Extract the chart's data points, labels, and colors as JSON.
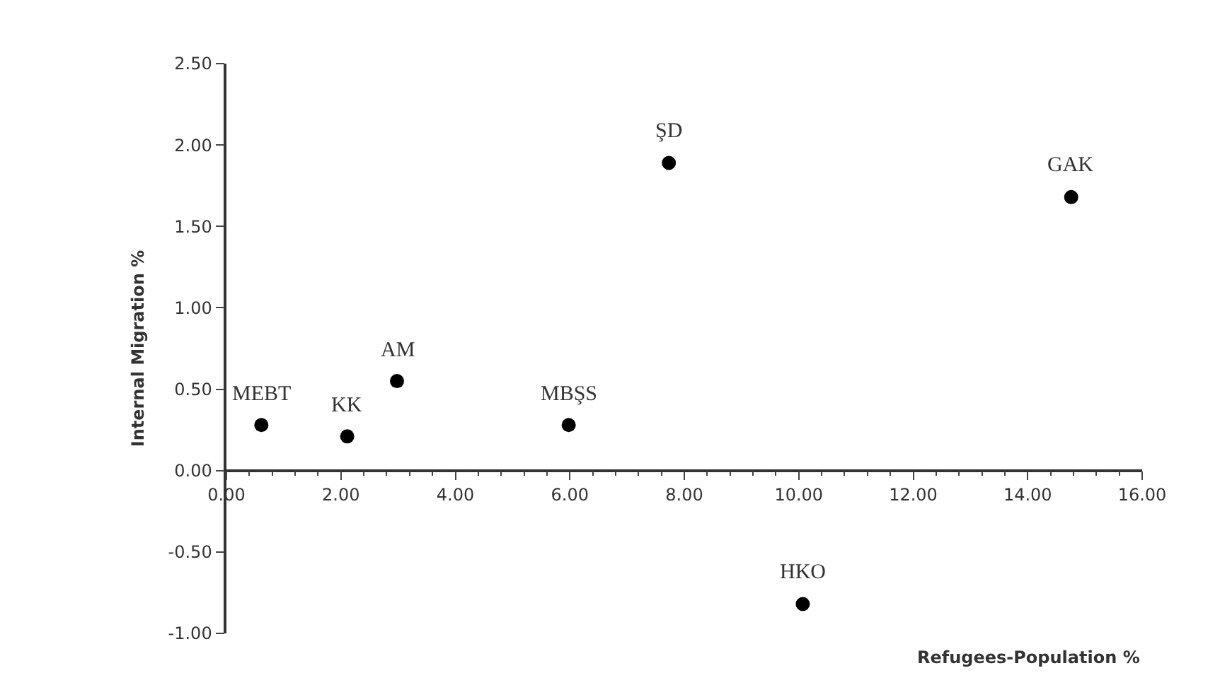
{
  "chart_data": {
    "type": "scatter",
    "xlabel": "Refugees-Population %",
    "ylabel": "Internal Migration %",
    "x": [
      0.61,
      2.11,
      2.98,
      5.98,
      7.73,
      14.76,
      10.07
    ],
    "series": [
      {
        "color": "#000000",
        "values": [
          0.28,
          0.21,
          0.55,
          0.28,
          1.89,
          1.68,
          -0.82
        ]
      }
    ],
    "annotations": [
      {
        "text": "MEBT",
        "x": 0.61,
        "y": 0.28
      },
      {
        "text": "KK",
        "x": 2.11,
        "y": 0.21
      },
      {
        "text": "AM",
        "x": 2.98,
        "y": 0.55
      },
      {
        "text": "MBŞS",
        "x": 5.98,
        "y": 0.28
      },
      {
        "text": "ŞD",
        "x": 7.73,
        "y": 1.89
      },
      {
        "text": "GAK",
        "x": 14.76,
        "y": 1.68
      },
      {
        "text": "HKO",
        "x": 10.07,
        "y": -0.82
      }
    ],
    "xlim": [
      0,
      16
    ],
    "xticks": [
      {
        "value": 0,
        "label": "0.00"
      },
      {
        "value": 2,
        "label": "2.00"
      },
      {
        "value": 4,
        "label": "4.00"
      },
      {
        "value": 6,
        "label": "6.00"
      },
      {
        "value": 8,
        "label": "8.00"
      },
      {
        "value": 10,
        "label": "10.00"
      },
      {
        "value": 12,
        "label": "12.00"
      },
      {
        "value": 14,
        "label": "14.00"
      },
      {
        "value": 16,
        "label": "16.00"
      }
    ],
    "ylim": [
      -1,
      2.5
    ],
    "yticks": [
      {
        "value": -1,
        "label": "-1.00"
      },
      {
        "value": -0.5,
        "label": "-0.50"
      },
      {
        "value": 0,
        "label": "0.00"
      },
      {
        "value": 0.5,
        "label": "0.50"
      },
      {
        "value": 1,
        "label": "1.00"
      },
      {
        "value": 1.5,
        "label": "1.50"
      },
      {
        "value": 2,
        "label": "2.00"
      },
      {
        "value": 2.5,
        "label": "2.50"
      }
    ],
    "marker": "circle"
  }
}
